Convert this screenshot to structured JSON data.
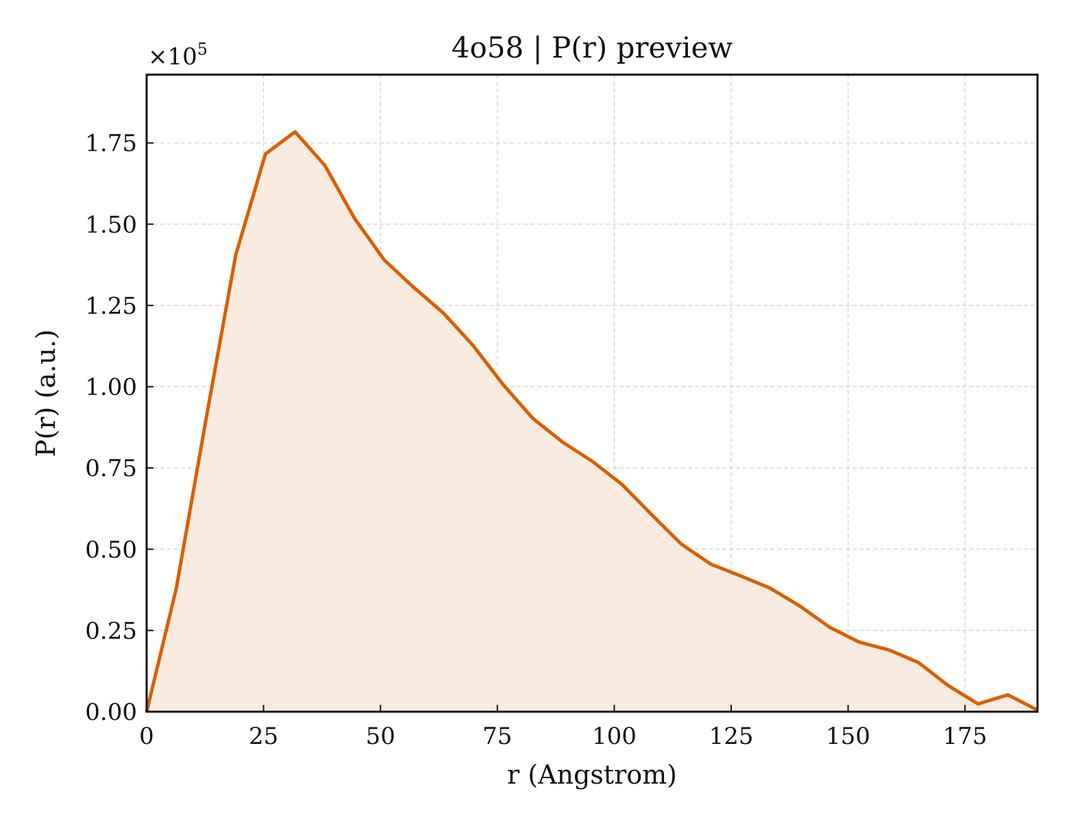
{
  "chart_data": {
    "type": "area",
    "title": "4o58 | P(r) preview",
    "xlabel": "r (Angstrom)",
    "ylabel": "P(r) (a.u.)",
    "y_scale_label": "×10",
    "y_scale_exponent": "5",
    "xlim": [
      0,
      190.5
    ],
    "ylim": [
      0,
      1.96
    ],
    "xticks": [
      0,
      25,
      50,
      75,
      100,
      125,
      150,
      175
    ],
    "xtick_labels": [
      "0",
      "25",
      "50",
      "75",
      "100",
      "125",
      "150",
      "175"
    ],
    "yticks": [
      0,
      0.25,
      0.5,
      0.75,
      1.0,
      1.25,
      1.5,
      1.75
    ],
    "ytick_labels": [
      "0.00",
      "0.25",
      "0.50",
      "0.75",
      "1.00",
      "1.25",
      "1.50",
      "1.75"
    ],
    "grid": true,
    "series": [
      {
        "line_color": "#d95f02",
        "fill_color": "#f9ebe0",
        "x": [
          0,
          6.35,
          12.7,
          19.05,
          25.4,
          31.75,
          38.1,
          44.45,
          50.8,
          57.15,
          63.5,
          69.85,
          76.2,
          82.55,
          88.9,
          95.25,
          101.6,
          107.95,
          114.3,
          120.65,
          127.0,
          133.35,
          139.7,
          146.05,
          152.4,
          158.75,
          165.1,
          171.45,
          177.8,
          184.15,
          190.5
        ],
        "y": [
          0.0,
          0.38,
          0.9,
          1.405,
          1.716,
          1.784,
          1.681,
          1.518,
          1.39,
          1.305,
          1.226,
          1.126,
          1.007,
          0.903,
          0.83,
          0.771,
          0.7,
          0.607,
          0.516,
          0.454,
          0.418,
          0.38,
          0.325,
          0.26,
          0.214,
          0.19,
          0.151,
          0.08,
          0.024,
          0.052,
          0.005
        ]
      }
    ]
  }
}
